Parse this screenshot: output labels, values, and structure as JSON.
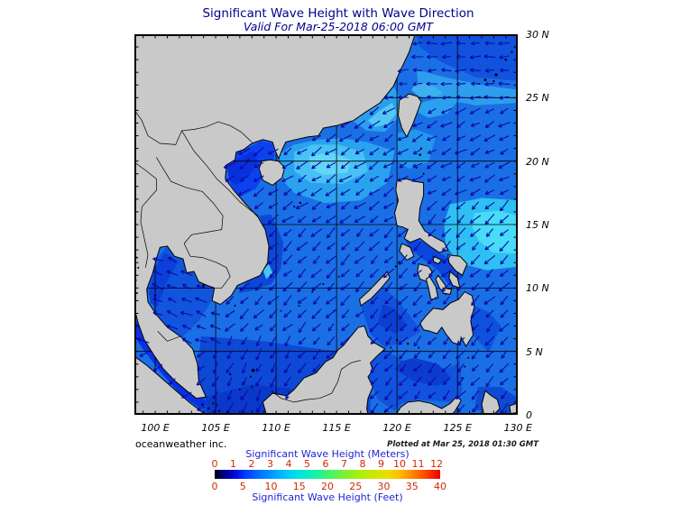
{
  "header": {
    "title": "Significant Wave Height with Wave Direction",
    "valid_for": "Valid For Mar-25-2018 06:00 GMT",
    "title_color": "#00008B"
  },
  "map": {
    "lat_labels": [
      {
        "text": "30 N",
        "lat": 30
      },
      {
        "text": "25 N",
        "lat": 25
      },
      {
        "text": "20 N",
        "lat": 20
      },
      {
        "text": "15 N",
        "lat": 15
      },
      {
        "text": "10 N",
        "lat": 10
      },
      {
        "text": "5 N",
        "lat": 5
      },
      {
        "text": "0",
        "lat": 0
      }
    ],
    "lon_labels": [
      {
        "text": "100 E",
        "lon": 100
      },
      {
        "text": "105 E",
        "lon": 105
      },
      {
        "text": "110 E",
        "lon": 110
      },
      {
        "text": "115 E",
        "lon": 115
      },
      {
        "text": "120 E",
        "lon": 120
      },
      {
        "text": "125 E",
        "lon": 125
      },
      {
        "text": "130 E",
        "lon": 130
      }
    ],
    "graticule": {
      "lon_min": 100,
      "lon_max": 130,
      "lat_min": 0,
      "lat_max": 30,
      "step_deg": 5,
      "minor_tick_deg": 1
    },
    "colors": {
      "land": "#C9C9C9",
      "coastline": "#000000",
      "ocean_base": "#1A6FE4",
      "grid": "#000000",
      "frame": "#000000",
      "arrow": "#0A0AAA"
    }
  },
  "footer": {
    "credit": "oceanweather inc.",
    "plotted_at": "Plotted at Mar 25, 2018 01:30 GMT"
  },
  "legend": {
    "meters_label": "Significant Wave Height (Meters)",
    "feet_label": "Significant Wave Height (Feet)",
    "meters_ticks": [
      0,
      1,
      2,
      3,
      4,
      5,
      6,
      7,
      8,
      9,
      10,
      11,
      12
    ],
    "feet_ticks": [
      0,
      5,
      10,
      15,
      20,
      25,
      30,
      35,
      40
    ],
    "bar_max_meters": 12.192,
    "feet_per_meter": 0.3048,
    "label_color": "#1F1FD6",
    "tick_color": "#D42800",
    "gradient": [
      [
        0.0,
        "#000000"
      ],
      [
        0.025,
        "#000060"
      ],
      [
        0.06,
        "#0000A8"
      ],
      [
        0.1,
        "#0010E8"
      ],
      [
        0.14,
        "#0040FF"
      ],
      [
        0.2,
        "#0070FF"
      ],
      [
        0.26,
        "#00A0FF"
      ],
      [
        0.32,
        "#00C8FA"
      ],
      [
        0.38,
        "#00E6E0"
      ],
      [
        0.44,
        "#10F0B0"
      ],
      [
        0.5,
        "#40F470"
      ],
      [
        0.57,
        "#78F038"
      ],
      [
        0.64,
        "#A8EE10"
      ],
      [
        0.71,
        "#CCE800"
      ],
      [
        0.77,
        "#EEDC00"
      ],
      [
        0.83,
        "#FFB400"
      ],
      [
        0.89,
        "#FF7800"
      ],
      [
        0.945,
        "#FF3C00"
      ],
      [
        1.0,
        "#E60000"
      ]
    ]
  }
}
